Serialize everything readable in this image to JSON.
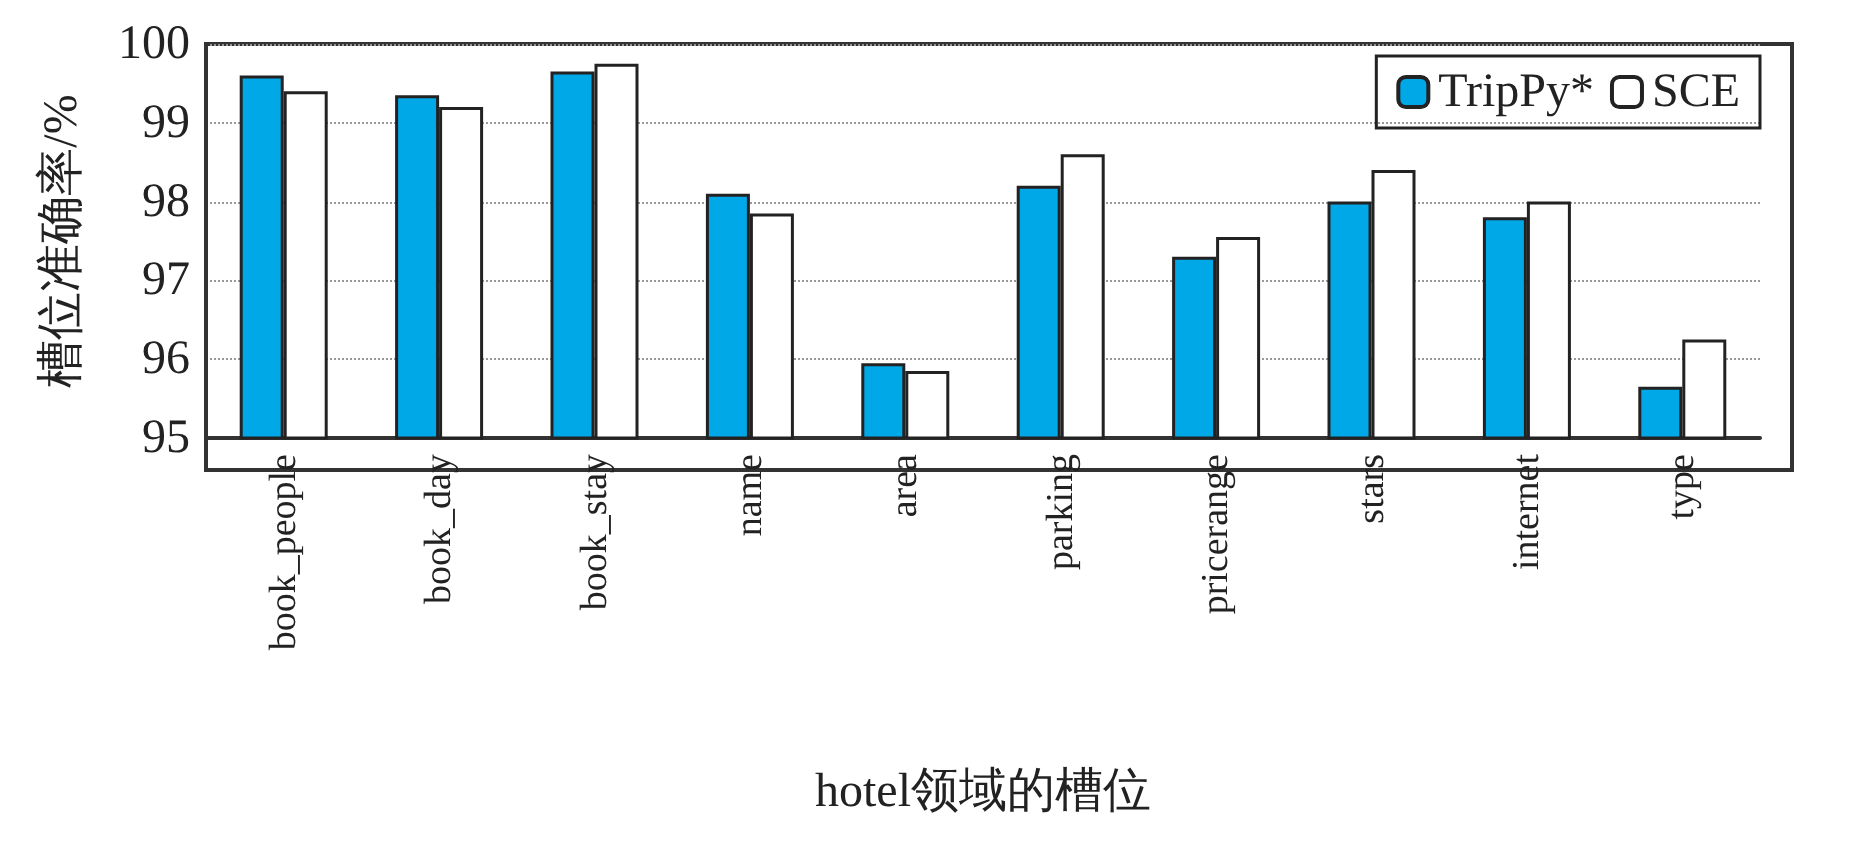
{
  "chart_data": {
    "type": "bar",
    "xlabel": "hotel领域的槽位",
    "ylabel": "槽位准确率/%",
    "categories": [
      "book_people",
      "book_day",
      "book_stay",
      "name",
      "area",
      "parking",
      "pricerange",
      "stars",
      "internet",
      "type"
    ],
    "series": [
      {
        "name": "TripPy*",
        "color": "#00a8e8",
        "values": [
          99.6,
          99.35,
          99.65,
          98.1,
          95.95,
          98.2,
          97.3,
          98.0,
          97.8,
          95.65
        ]
      },
      {
        "name": "SCE",
        "color": "#ffffff",
        "values": [
          99.4,
          99.2,
          99.75,
          97.85,
          95.85,
          98.6,
          97.55,
          98.4,
          98.0,
          96.25
        ]
      }
    ],
    "ylim": [
      95,
      100
    ],
    "yticks": [
      95,
      96,
      97,
      98,
      99,
      100
    ],
    "grid": "y",
    "legend": "top right"
  }
}
